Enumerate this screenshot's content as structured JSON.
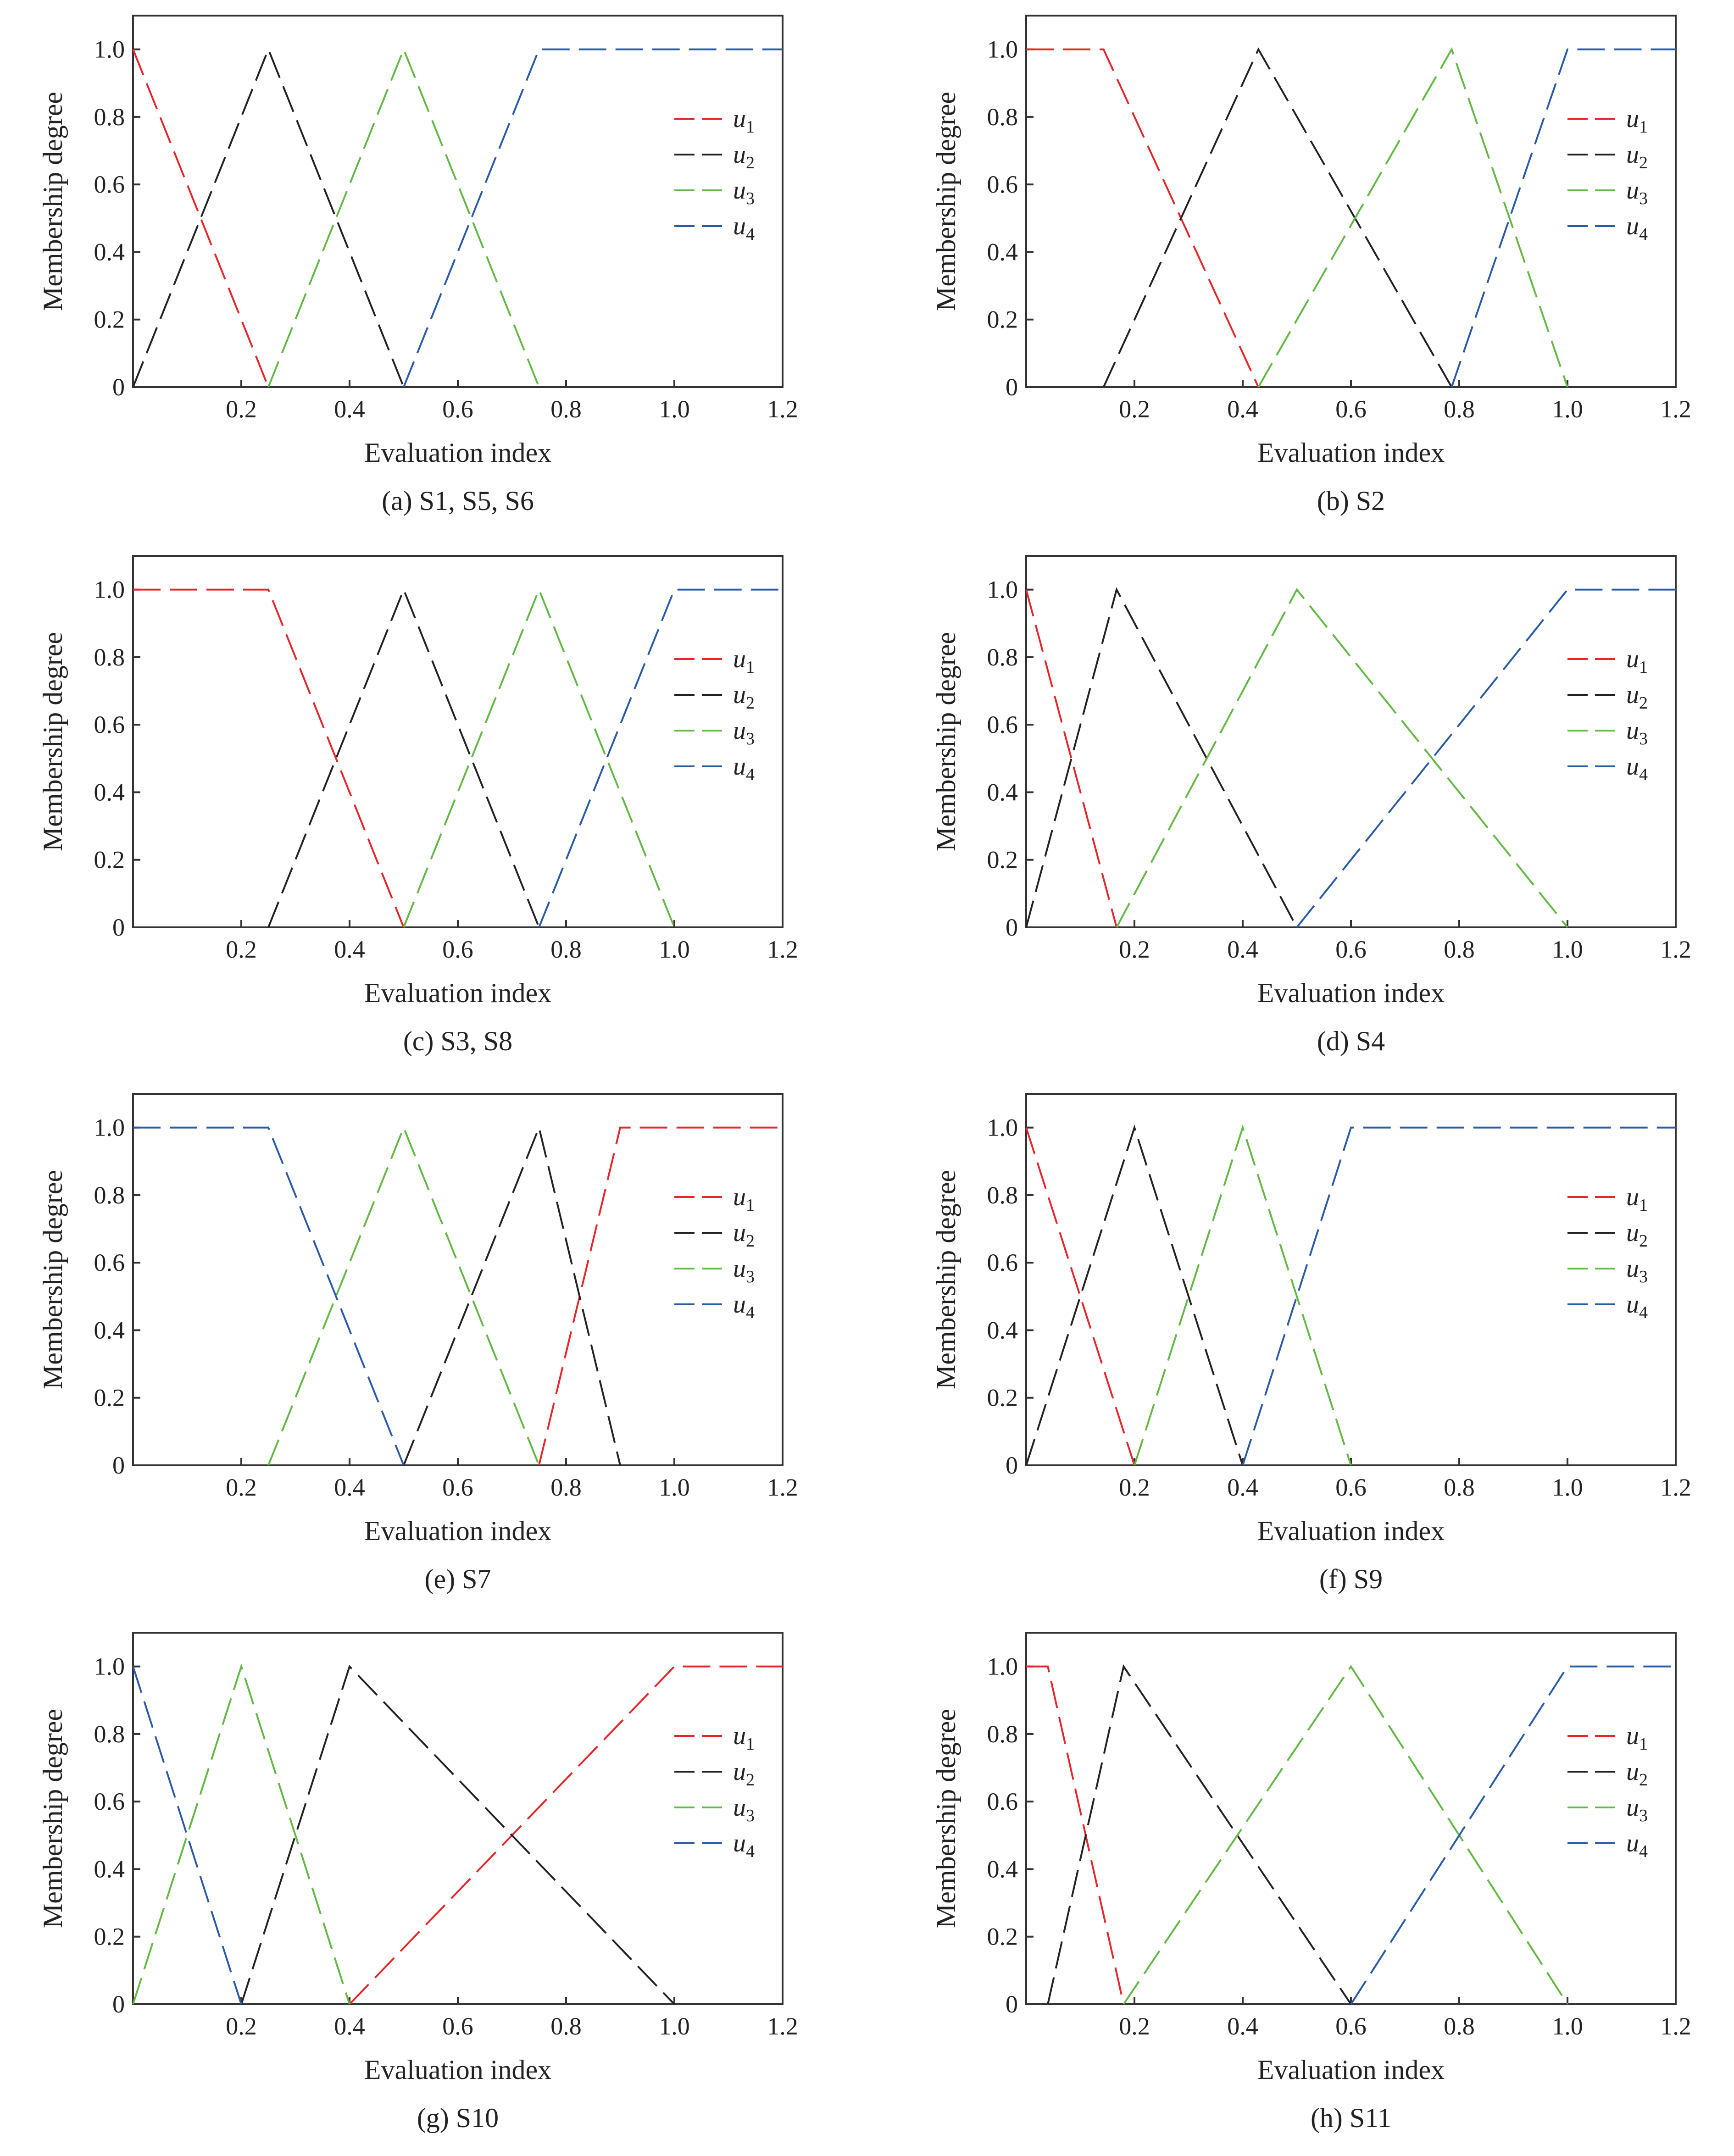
{
  "colors": {
    "u1": "#e8262a",
    "u2": "#222222",
    "u3": "#62b944",
    "u4": "#2a5ba7"
  },
  "chart_data": [
    {
      "type": "line",
      "caption": "(a) S1, S5, S6",
      "xlabel": "Evaluation index",
      "ylabel": "Membership degree",
      "xlim": [
        0,
        1.2
      ],
      "ylim": [
        0,
        1.1
      ],
      "xticks": [
        "0.2",
        "0.4",
        "0.6",
        "0.8",
        "1.0",
        "1.2"
      ],
      "yticks": [
        "0",
        "0.2",
        "0.4",
        "0.6",
        "0.8",
        "1.0"
      ],
      "legend_position": "right",
      "series": [
        {
          "name": "u",
          "sub": "1",
          "color_key": "u1",
          "x": [
            0,
            0.25
          ],
          "y": [
            1,
            0
          ]
        },
        {
          "name": "u",
          "sub": "2",
          "color_key": "u2",
          "x": [
            0,
            0.25,
            0.5
          ],
          "y": [
            0,
            1,
            0
          ]
        },
        {
          "name": "u",
          "sub": "3",
          "color_key": "u3",
          "x": [
            0.25,
            0.5,
            0.75
          ],
          "y": [
            0,
            1,
            0
          ]
        },
        {
          "name": "u",
          "sub": "4",
          "color_key": "u4",
          "x": [
            0.5,
            0.75,
            1.2
          ],
          "y": [
            0,
            1,
            1
          ]
        }
      ]
    },
    {
      "type": "line",
      "caption": "(b) S2",
      "xlabel": "Evaluation index",
      "ylabel": "Membership degree",
      "xlim": [
        0,
        1.2
      ],
      "ylim": [
        0,
        1.1
      ],
      "xticks": [
        "0.2",
        "0.4",
        "0.6",
        "0.8",
        "1.0",
        "1.2"
      ],
      "yticks": [
        "0",
        "0.2",
        "0.4",
        "0.6",
        "0.8",
        "1.0"
      ],
      "legend_position": "right",
      "series": [
        {
          "name": "u",
          "sub": "1",
          "color_key": "u1",
          "x": [
            0,
            0.143,
            0.429
          ],
          "y": [
            1,
            1,
            0
          ]
        },
        {
          "name": "u",
          "sub": "2",
          "color_key": "u2",
          "x": [
            0.143,
            0.429,
            0.786
          ],
          "y": [
            0,
            1,
            0
          ]
        },
        {
          "name": "u",
          "sub": "3",
          "color_key": "u3",
          "x": [
            0.429,
            0.786,
            1.0
          ],
          "y": [
            0,
            1,
            0
          ]
        },
        {
          "name": "u",
          "sub": "4",
          "color_key": "u4",
          "x": [
            0.786,
            1.0,
            1.2
          ],
          "y": [
            0,
            1,
            1
          ]
        }
      ]
    },
    {
      "type": "line",
      "caption": "(c) S3, S8",
      "xlabel": "Evaluation index",
      "ylabel": "Membership degree",
      "xlim": [
        0,
        1.2
      ],
      "ylim": [
        0,
        1.1
      ],
      "xticks": [
        "0.2",
        "0.4",
        "0.6",
        "0.8",
        "1.0",
        "1.2"
      ],
      "yticks": [
        "0",
        "0.2",
        "0.4",
        "0.6",
        "0.8",
        "1.0"
      ],
      "legend_position": "right",
      "series": [
        {
          "name": "u",
          "sub": "1",
          "color_key": "u1",
          "x": [
            0,
            0.25,
            0.5
          ],
          "y": [
            1,
            1,
            0
          ]
        },
        {
          "name": "u",
          "sub": "2",
          "color_key": "u2",
          "x": [
            0.25,
            0.5,
            0.75
          ],
          "y": [
            0,
            1,
            0
          ]
        },
        {
          "name": "u",
          "sub": "3",
          "color_key": "u3",
          "x": [
            0.5,
            0.75,
            1.0
          ],
          "y": [
            0,
            1,
            0
          ]
        },
        {
          "name": "u",
          "sub": "4",
          "color_key": "u4",
          "x": [
            0.75,
            1.0,
            1.2
          ],
          "y": [
            0,
            1,
            1
          ]
        }
      ]
    },
    {
      "type": "line",
      "caption": "(d) S4",
      "xlabel": "Evaluation index",
      "ylabel": "Membership degree",
      "xlim": [
        0,
        1.2
      ],
      "ylim": [
        0,
        1.1
      ],
      "xticks": [
        "0.2",
        "0.4",
        "0.6",
        "0.8",
        "1.0",
        "1.2"
      ],
      "yticks": [
        "0",
        "0.2",
        "0.4",
        "0.6",
        "0.8",
        "1.0"
      ],
      "legend_position": "right",
      "series": [
        {
          "name": "u",
          "sub": "1",
          "color_key": "u1",
          "x": [
            0,
            0.167
          ],
          "y": [
            1,
            0
          ]
        },
        {
          "name": "u",
          "sub": "2",
          "color_key": "u2",
          "x": [
            0,
            0.167,
            0.5
          ],
          "y": [
            0,
            1,
            0
          ]
        },
        {
          "name": "u",
          "sub": "3",
          "color_key": "u3",
          "x": [
            0.167,
            0.5,
            1.0
          ],
          "y": [
            0,
            1,
            0
          ]
        },
        {
          "name": "u",
          "sub": "4",
          "color_key": "u4",
          "x": [
            0.5,
            1.0,
            1.2
          ],
          "y": [
            0,
            1,
            1
          ]
        }
      ]
    },
    {
      "type": "line",
      "caption": "(e) S7",
      "xlabel": "Evaluation index",
      "ylabel": "Membership degree",
      "xlim": [
        0,
        1.2
      ],
      "ylim": [
        0,
        1.1
      ],
      "xticks": [
        "0.2",
        "0.4",
        "0.6",
        "0.8",
        "1.0",
        "1.2"
      ],
      "yticks": [
        "0",
        "0.2",
        "0.4",
        "0.6",
        "0.8",
        "1.0"
      ],
      "legend_position": "right",
      "series": [
        {
          "name": "u",
          "sub": "1",
          "color_key": "u1",
          "x": [
            0.75,
            0.9,
            1.2
          ],
          "y": [
            0,
            1,
            1
          ]
        },
        {
          "name": "u",
          "sub": "2",
          "color_key": "u2",
          "x": [
            0.5,
            0.75,
            0.9
          ],
          "y": [
            0,
            1,
            0
          ]
        },
        {
          "name": "u",
          "sub": "3",
          "color_key": "u3",
          "x": [
            0.25,
            0.5,
            0.75
          ],
          "y": [
            0,
            1,
            0
          ]
        },
        {
          "name": "u",
          "sub": "4",
          "color_key": "u4",
          "x": [
            0,
            0.25,
            0.5
          ],
          "y": [
            1,
            1,
            0
          ]
        }
      ]
    },
    {
      "type": "line",
      "caption": "(f) S9",
      "xlabel": "Evaluation index",
      "ylabel": "Membership degree",
      "xlim": [
        0,
        1.2
      ],
      "ylim": [
        0,
        1.1
      ],
      "xticks": [
        "0.2",
        "0.4",
        "0.6",
        "0.8",
        "1.0",
        "1.2"
      ],
      "yticks": [
        "0",
        "0.2",
        "0.4",
        "0.6",
        "0.8",
        "1.0"
      ],
      "legend_position": "right",
      "series": [
        {
          "name": "u",
          "sub": "1",
          "color_key": "u1",
          "x": [
            0,
            0.2
          ],
          "y": [
            1,
            0
          ]
        },
        {
          "name": "u",
          "sub": "2",
          "color_key": "u2",
          "x": [
            0,
            0.2,
            0.4
          ],
          "y": [
            0,
            1,
            0
          ]
        },
        {
          "name": "u",
          "sub": "3",
          "color_key": "u3",
          "x": [
            0.2,
            0.4,
            0.6
          ],
          "y": [
            0,
            1,
            0
          ]
        },
        {
          "name": "u",
          "sub": "4",
          "color_key": "u4",
          "x": [
            0.4,
            0.6,
            1.2
          ],
          "y": [
            0,
            1,
            1
          ]
        }
      ]
    },
    {
      "type": "line",
      "caption": "(g) S10",
      "xlabel": "Evaluation index",
      "ylabel": "Membership degree",
      "xlim": [
        0,
        1.2
      ],
      "ylim": [
        0,
        1.1
      ],
      "xticks": [
        "0.2",
        "0.4",
        "0.6",
        "0.8",
        "1.0",
        "1.2"
      ],
      "yticks": [
        "0",
        "0.2",
        "0.4",
        "0.6",
        "0.8",
        "1.0"
      ],
      "legend_position": "right",
      "series": [
        {
          "name": "u",
          "sub": "1",
          "color_key": "u1",
          "x": [
            0.4,
            1.0,
            1.2
          ],
          "y": [
            0,
            1,
            1
          ]
        },
        {
          "name": "u",
          "sub": "2",
          "color_key": "u2",
          "x": [
            0.2,
            0.4,
            1.0
          ],
          "y": [
            0,
            1,
            0
          ]
        },
        {
          "name": "u",
          "sub": "3",
          "color_key": "u3",
          "x": [
            0,
            0.2,
            0.4
          ],
          "y": [
            0,
            1,
            0
          ]
        },
        {
          "name": "u",
          "sub": "4",
          "color_key": "u4",
          "x": [
            0,
            0.2
          ],
          "y": [
            1,
            0
          ]
        }
      ]
    },
    {
      "type": "line",
      "caption": "(h) S11",
      "xlabel": "Evaluation index",
      "ylabel": "Membership degree",
      "xlim": [
        0,
        1.2
      ],
      "ylim": [
        0,
        1.1
      ],
      "xticks": [
        "0.2",
        "0.4",
        "0.6",
        "0.8",
        "1.0",
        "1.2"
      ],
      "yticks": [
        "0",
        "0.2",
        "0.4",
        "0.6",
        "0.8",
        "1.0"
      ],
      "legend_position": "right",
      "series": [
        {
          "name": "u",
          "sub": "1",
          "color_key": "u1",
          "x": [
            0,
            0.04,
            0.18
          ],
          "y": [
            1,
            1,
            0
          ]
        },
        {
          "name": "u",
          "sub": "2",
          "color_key": "u2",
          "x": [
            0.04,
            0.18,
            0.6
          ],
          "y": [
            0,
            1,
            0
          ]
        },
        {
          "name": "u",
          "sub": "3",
          "color_key": "u3",
          "x": [
            0.18,
            0.6,
            1.0
          ],
          "y": [
            0,
            1,
            0
          ]
        },
        {
          "name": "u",
          "sub": "4",
          "color_key": "u4",
          "x": [
            0.6,
            1.0,
            1.2
          ],
          "y": [
            0,
            1,
            1
          ]
        }
      ]
    }
  ]
}
